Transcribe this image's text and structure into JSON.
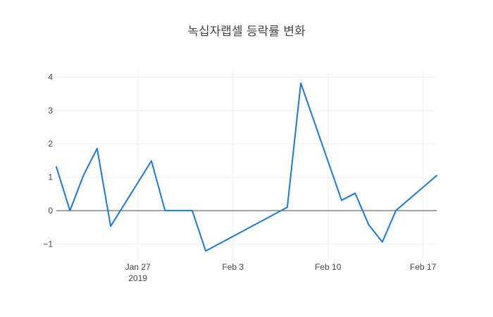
{
  "chart_data": {
    "type": "line",
    "title": "녹십자랩셀 등락률 변화",
    "xlabel": "",
    "ylabel": "",
    "x": [
      "2019-01-21",
      "2019-01-22",
      "2019-01-23",
      "2019-01-24",
      "2019-01-25",
      "2019-01-28",
      "2019-01-29",
      "2019-01-30",
      "2019-01-31",
      "2019-02-01",
      "2019-02-07",
      "2019-02-08",
      "2019-02-11",
      "2019-02-12",
      "2019-02-13",
      "2019-02-14",
      "2019-02-15",
      "2019-02-18"
    ],
    "series": [
      {
        "color": "#1f77d4",
        "values": [
          1.31,
          0.0,
          1.06,
          1.86,
          -0.47,
          1.49,
          0.0,
          0.0,
          0.0,
          -1.21,
          0.1,
          3.82,
          0.31,
          0.52,
          -0.43,
          -0.94,
          0.0,
          1.05
        ]
      }
    ],
    "xlim": [
      "2019-01-21",
      "2019-02-18"
    ],
    "ylim": [
      -1.5,
      4.2
    ],
    "x_ticks": [
      {
        "date": "2019-01-27",
        "label": "Jan 27",
        "sublabel": "2019"
      },
      {
        "date": "2019-02-03",
        "label": "Feb 3",
        "sublabel": ""
      },
      {
        "date": "2019-02-10",
        "label": "Feb 10",
        "sublabel": ""
      },
      {
        "date": "2019-02-17",
        "label": "Feb 17",
        "sublabel": ""
      }
    ],
    "y_ticks": [
      {
        "value": 4,
        "label": "4"
      },
      {
        "value": 3,
        "label": "3"
      },
      {
        "value": 2,
        "label": "2"
      },
      {
        "value": 1,
        "label": "1"
      },
      {
        "value": 0,
        "label": "0"
      },
      {
        "value": -1,
        "label": "−1"
      }
    ],
    "grid": true,
    "zero_line": true,
    "legend": "none"
  }
}
